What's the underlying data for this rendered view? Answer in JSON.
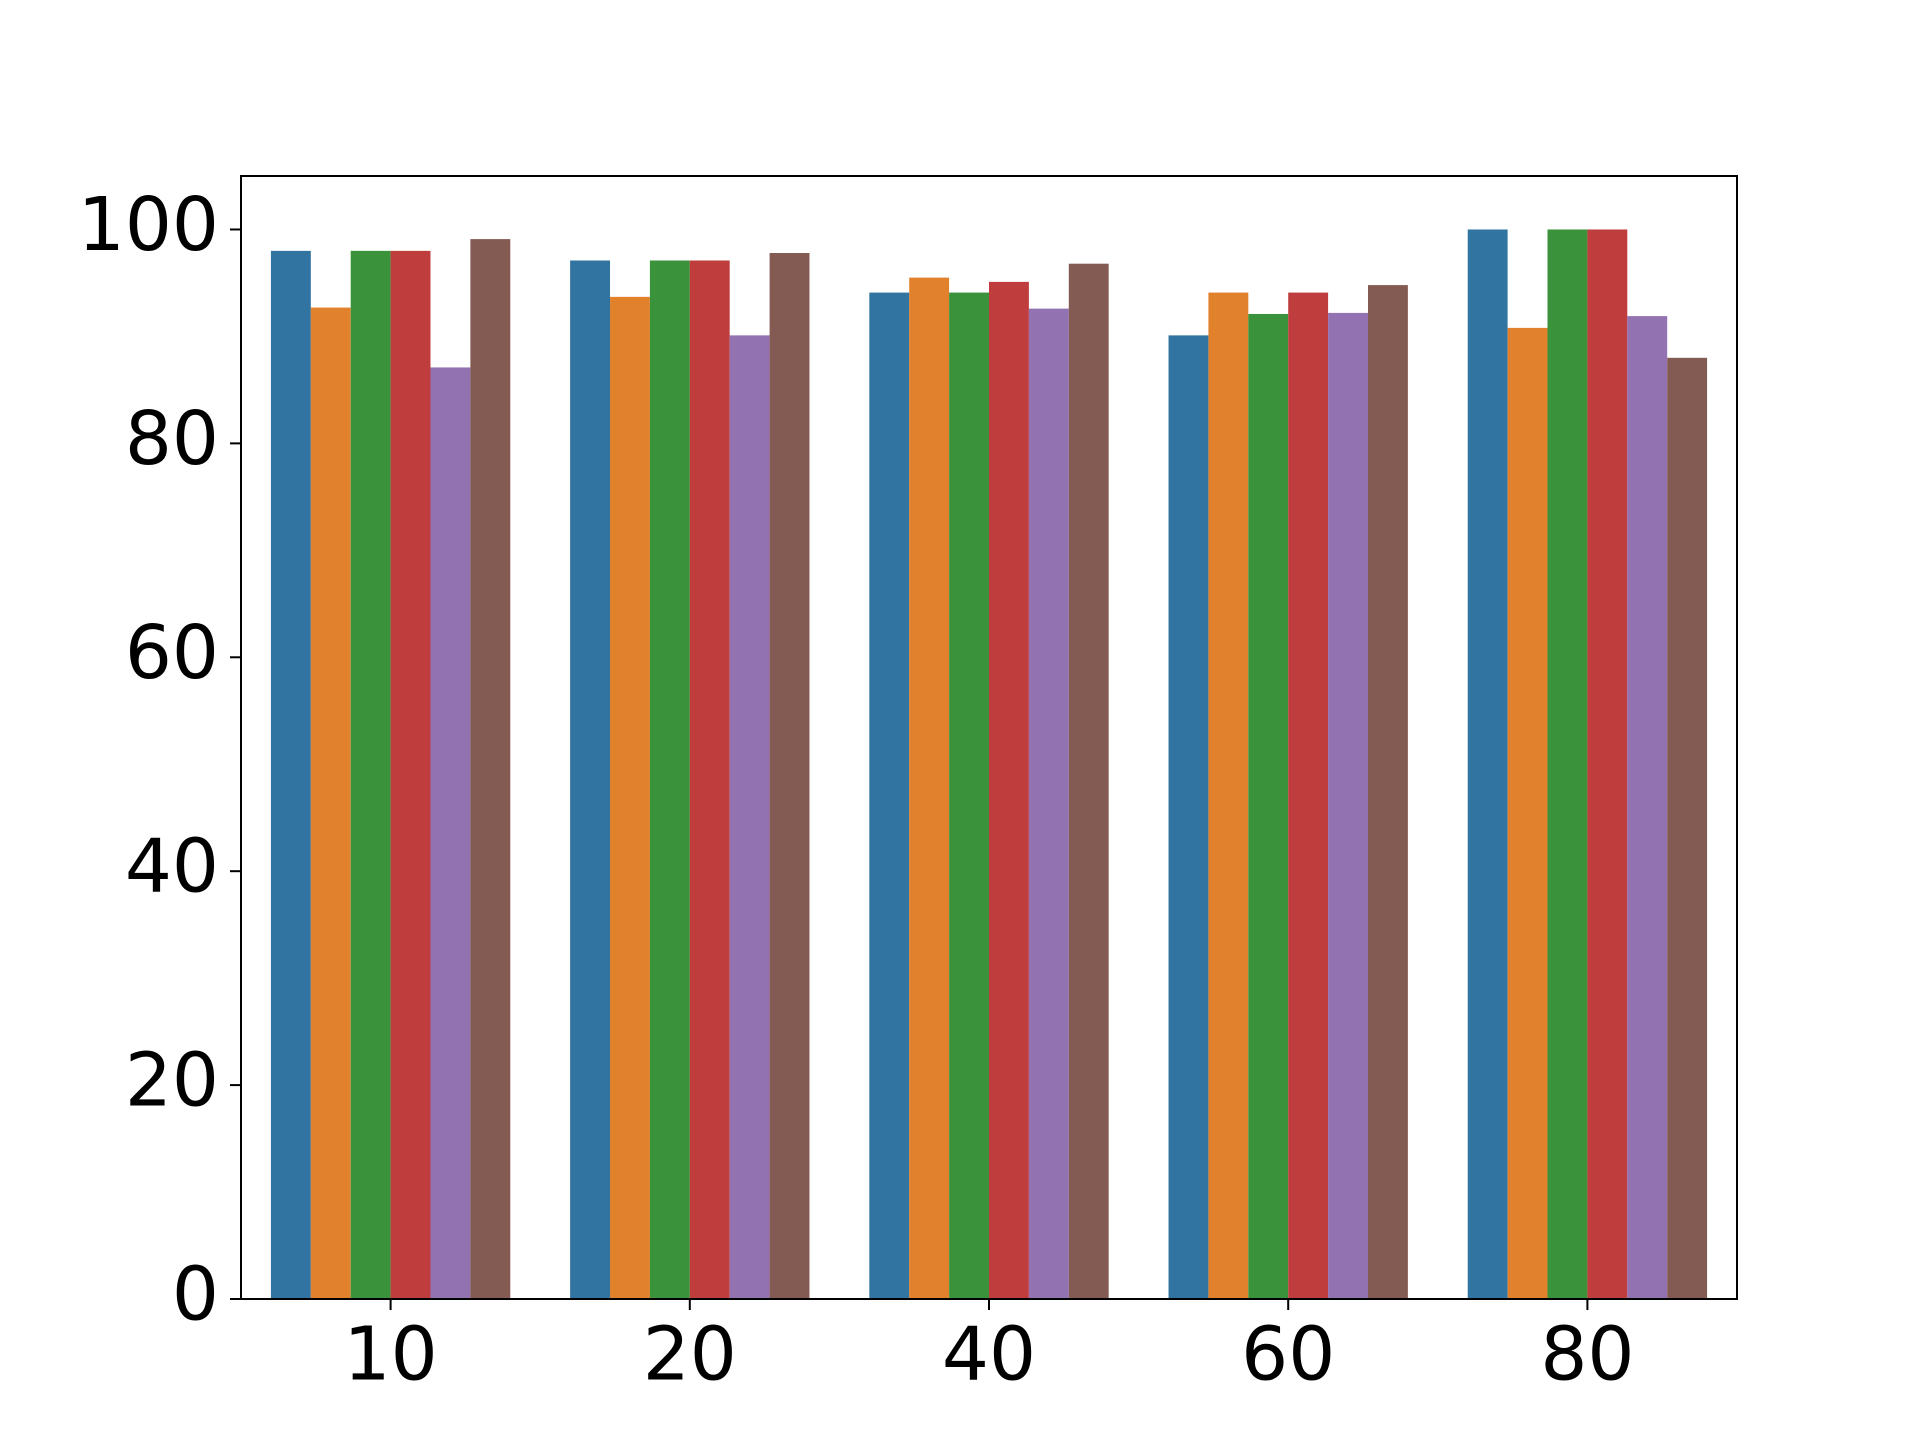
{
  "chart_data": {
    "type": "bar",
    "categories": [
      "10",
      "20",
      "40",
      "60",
      "80"
    ],
    "series": [
      {
        "color": "#3274a1",
        "values": [
          98.0,
          97.1,
          94.1,
          90.1,
          100
        ]
      },
      {
        "color": "#e1812c",
        "values": [
          92.7,
          93.7,
          95.5,
          94.1,
          90.8
        ]
      },
      {
        "color": "#3a923a",
        "values": [
          98.0,
          97.1,
          94.1,
          92.1,
          100
        ]
      },
      {
        "color": "#c03d3e",
        "values": [
          98.0,
          97.1,
          95.1,
          94.1,
          100
        ]
      },
      {
        "color": "#9372b2",
        "values": [
          87.1,
          90.1,
          92.6,
          92.2,
          91.9
        ]
      },
      {
        "color": "#845b53",
        "values": [
          99.1,
          97.8,
          96.8,
          94.8,
          88.0
        ]
      }
    ],
    "ylim": [
      0,
      105
    ],
    "yticks": [
      0,
      20,
      40,
      60,
      80,
      100
    ],
    "grid": false
  }
}
